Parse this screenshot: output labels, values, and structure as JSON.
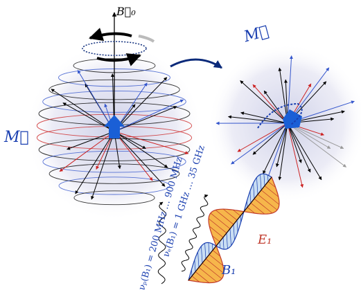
{
  "left_sphere": {
    "field_label": "B⃗₀",
    "magnetization_label": "M⃗"
  },
  "right_sphere": {
    "magnetization_label": "M⃗"
  },
  "frequencies": {
    "proton": "νₚ(B₁) = 200 MHz … 900 MHz",
    "electron": "νₑ(B₁) = 1 GHz … 35 GHz"
  },
  "wave": {
    "electric_label": "E₁",
    "magnetic_label": "B₁"
  }
}
